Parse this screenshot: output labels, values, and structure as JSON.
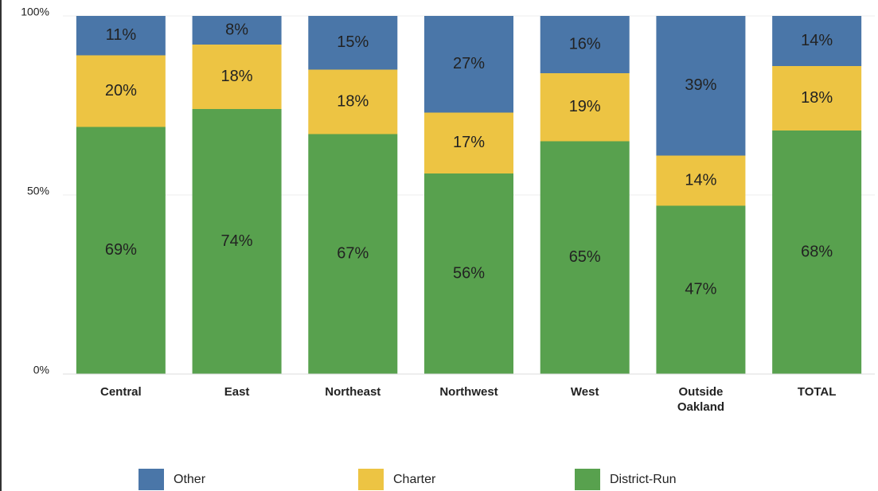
{
  "chart_data": {
    "type": "stacked_bar",
    "categories": [
      "Central",
      "East",
      "Northeast",
      "Northwest",
      "West",
      "Outside Oakland",
      "TOTAL"
    ],
    "series": [
      {
        "name": "Other",
        "color": "#4a76a8",
        "values": [
          11,
          8,
          15,
          27,
          16,
          39,
          14
        ],
        "value_labels": [
          "11%",
          "8%",
          "15%",
          "27%",
          "16%",
          "39%",
          "14%"
        ]
      },
      {
        "name": "Charter",
        "color": "#edc443",
        "values": [
          20,
          18,
          18,
          17,
          19,
          14,
          18
        ],
        "value_labels": [
          "20%",
          "18%",
          "18%",
          "17%",
          "19%",
          "14%",
          "18%"
        ]
      },
      {
        "name": "District-Run",
        "color": "#58a14e",
        "values": [
          69,
          74,
          67,
          56,
          65,
          47,
          68
        ],
        "value_labels": [
          "69%",
          "74%",
          "67%",
          "56%",
          "65%",
          "47%",
          "68%"
        ]
      }
    ],
    "ylim": [
      0,
      100
    ],
    "yticks": [
      {
        "value": 0,
        "label": "0%"
      },
      {
        "value": 50,
        "label": "50%"
      },
      {
        "value": 100,
        "label": "100%"
      }
    ],
    "grid": true,
    "legend": "bottom"
  }
}
